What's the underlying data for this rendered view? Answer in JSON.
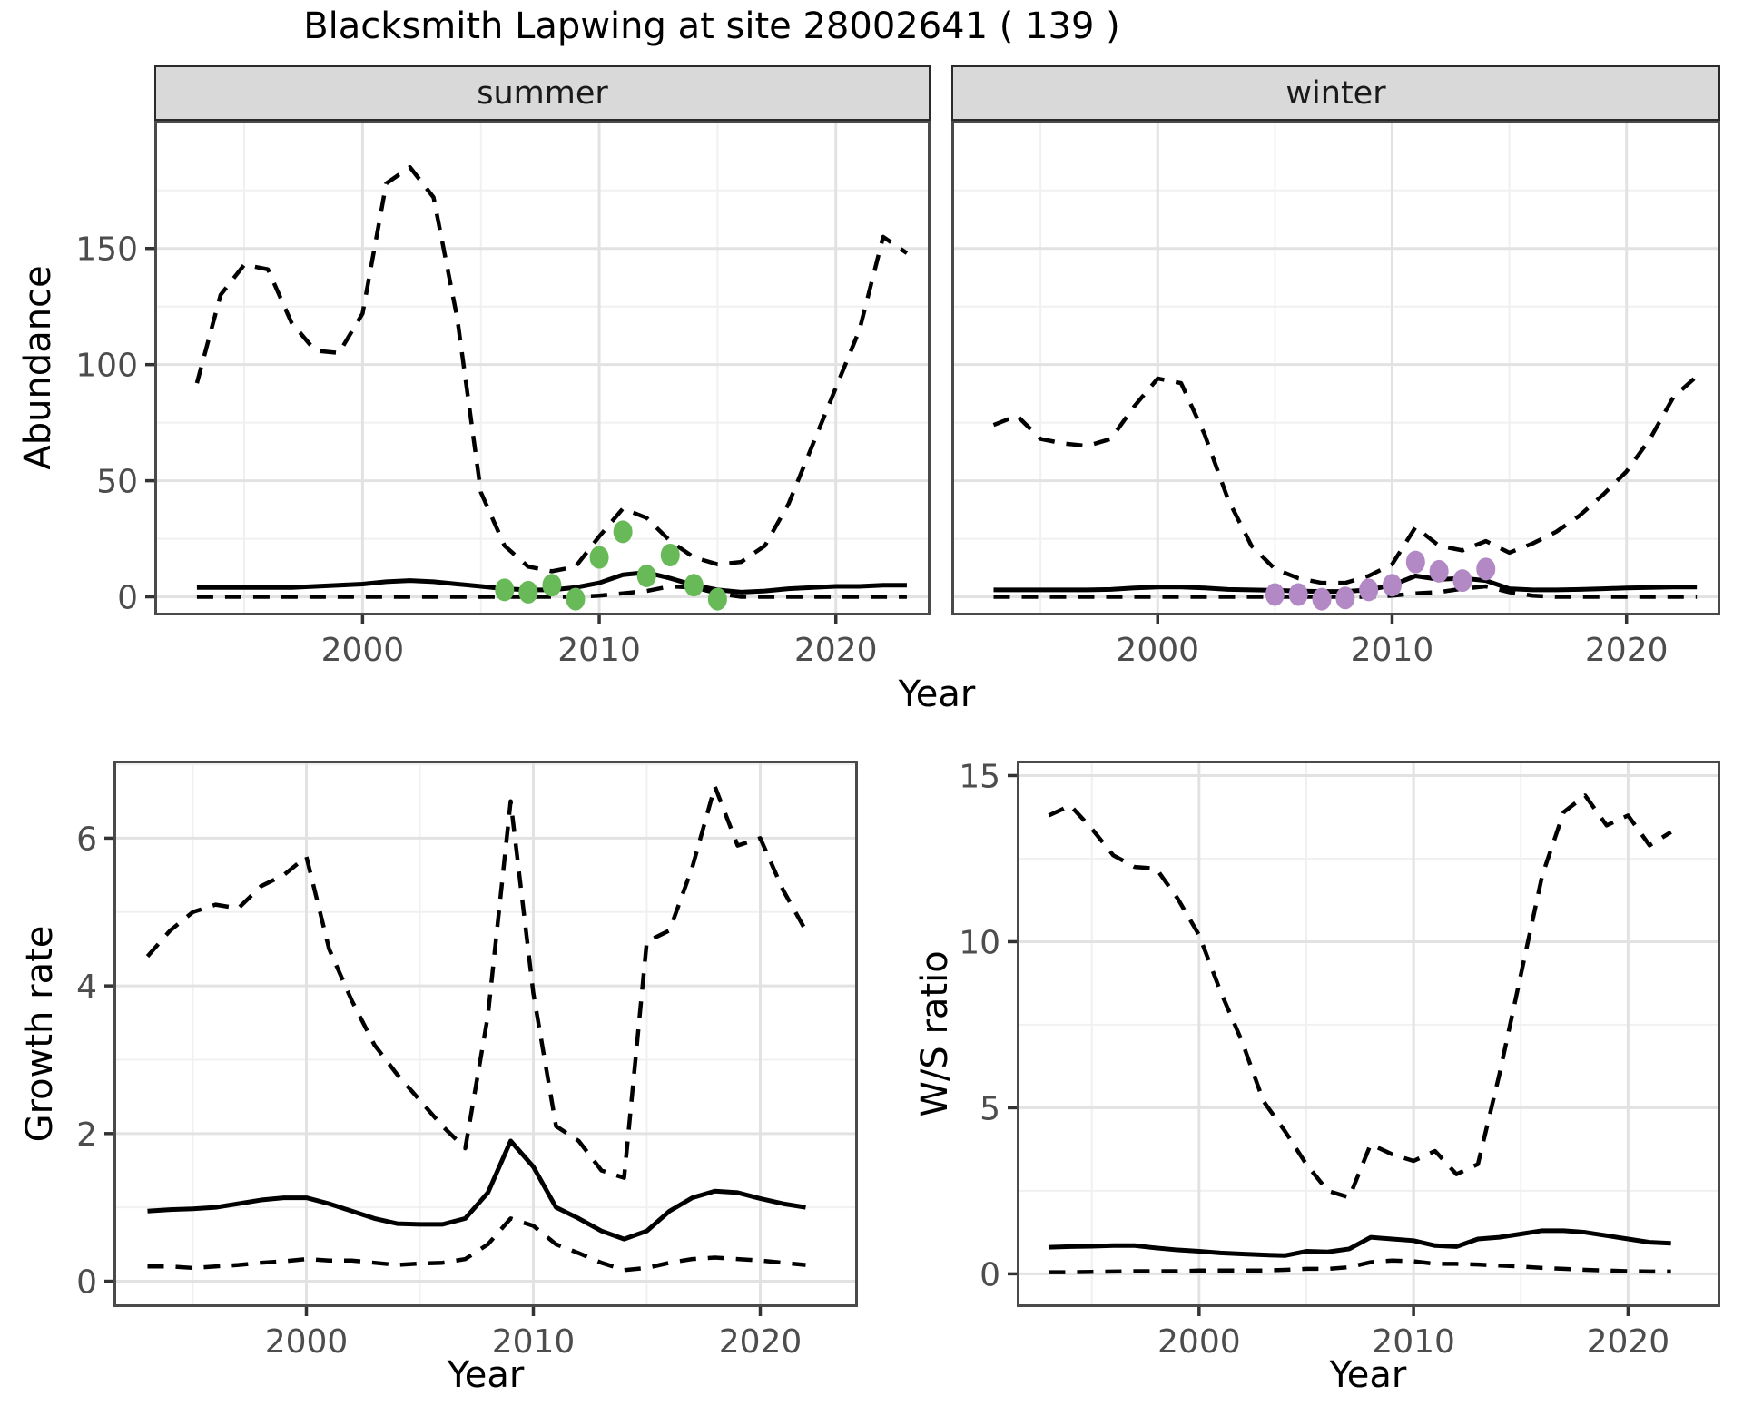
{
  "title": "Blacksmith Lapwing at site 28002641 ( 139 )",
  "colors": {
    "observed_summer": "#68b957",
    "observed_winter": "#b289c5",
    "line": "#000000",
    "strip_background": "#d9d9d9",
    "grid_major": "#e2e2e2",
    "grid_minor": "#f0f0f0",
    "axis_text": "#4d4d4d",
    "panel_border": "#4a4a4a"
  },
  "chart_data": [
    {
      "id": "abundance_summer",
      "type": "line",
      "facet_label": "summer",
      "xlabel": "Year",
      "ylabel": "Abundance",
      "xlim": [
        1991.2,
        2024.0
      ],
      "ylim": [
        -8,
        205
      ],
      "xticks": [
        2000,
        2010,
        2020
      ],
      "xtick_labels": [
        "2000",
        "2010",
        "2020"
      ],
      "xminor": [
        1995,
        2005,
        2015
      ],
      "yticks": [
        0,
        50,
        100,
        150
      ],
      "ytick_labels": [
        "0",
        "50",
        "100",
        "150"
      ],
      "yminor": [
        25,
        75,
        125,
        175
      ],
      "show_ytick_labels": true,
      "grid": true,
      "legend_position": "none",
      "x": [
        1993,
        1994,
        1995,
        1996,
        1997,
        1998,
        1999,
        2000,
        2001,
        2002,
        2003,
        2004,
        2005,
        2006,
        2007,
        2008,
        2009,
        2010,
        2011,
        2012,
        2013,
        2014,
        2015,
        2016,
        2017,
        2018,
        2019,
        2020,
        2021,
        2022,
        2023
      ],
      "series": [
        {
          "name": "upper-ci",
          "style": "dashed",
          "color": "#000000",
          "values": [
            92,
            130,
            143,
            141,
            118,
            106,
            105,
            122,
            178,
            185,
            172,
            120,
            45,
            22,
            13,
            11,
            13,
            26,
            38,
            34,
            24,
            17,
            14,
            15,
            22,
            40,
            65,
            90,
            115,
            155,
            148
          ]
        },
        {
          "name": "median",
          "style": "solid",
          "color": "#000000",
          "values": [
            4,
            4,
            4,
            4,
            4,
            4.5,
            5,
            5.5,
            6.5,
            7,
            6.5,
            5.5,
            4.5,
            3.5,
            3,
            3,
            4,
            6,
            9.5,
            10.5,
            8,
            5,
            3,
            2,
            2.5,
            3.5,
            4,
            4.5,
            4.5,
            5,
            5
          ]
        },
        {
          "name": "lower-ci",
          "style": "dashed",
          "color": "#000000",
          "values": [
            0,
            0,
            0,
            0,
            0,
            0,
            0,
            0,
            0,
            0,
            0,
            0,
            0,
            0,
            0,
            0,
            0,
            0.5,
            1.5,
            2.5,
            4.5,
            4,
            1.5,
            0,
            0,
            0,
            0,
            0,
            0,
            0,
            0
          ]
        }
      ],
      "points": {
        "name": "observed-counts",
        "color": "#68b957",
        "x": [
          2006,
          2007,
          2008,
          2009,
          2010,
          2011,
          2012,
          2013,
          2014,
          2015
        ],
        "y": [
          3,
          2,
          5,
          -1,
          17,
          28,
          9,
          18,
          5,
          -1
        ]
      }
    },
    {
      "id": "abundance_winter",
      "type": "line",
      "facet_label": "winter",
      "xlabel": "Year",
      "ylabel": "Abundance",
      "xlim": [
        1991.2,
        2024.0
      ],
      "ylim": [
        -8,
        205
      ],
      "xticks": [
        2000,
        2010,
        2020
      ],
      "xtick_labels": [
        "2000",
        "2010",
        "2020"
      ],
      "xminor": [
        1995,
        2005,
        2015
      ],
      "yticks": [
        0,
        50,
        100,
        150
      ],
      "ytick_labels": [
        "0",
        "50",
        "100",
        "150"
      ],
      "yminor": [
        25,
        75,
        125,
        175
      ],
      "show_ytick_labels": false,
      "grid": true,
      "legend_position": "none",
      "x": [
        1993,
        1994,
        1995,
        1996,
        1997,
        1998,
        1999,
        2000,
        2001,
        2002,
        2003,
        2004,
        2005,
        2006,
        2007,
        2008,
        2009,
        2010,
        2011,
        2012,
        2013,
        2014,
        2015,
        2016,
        2017,
        2018,
        2019,
        2020,
        2021,
        2022,
        2023
      ],
      "series": [
        {
          "name": "upper-ci",
          "style": "dashed",
          "color": "#000000",
          "values": [
            74,
            78,
            68,
            66,
            65,
            68,
            82,
            94,
            92,
            70,
            42,
            22,
            12,
            8,
            6,
            6,
            9,
            14,
            30,
            22,
            20,
            24,
            19,
            23,
            28,
            35,
            44,
            54,
            68,
            86,
            95
          ]
        },
        {
          "name": "median",
          "style": "solid",
          "color": "#000000",
          "values": [
            3,
            3,
            3,
            3,
            3,
            3.2,
            3.8,
            4.2,
            4.2,
            3.8,
            3.2,
            3,
            2.8,
            2.5,
            2.3,
            2.3,
            3,
            5,
            9,
            7.5,
            8,
            7,
            3.5,
            3,
            3,
            3.2,
            3.5,
            3.8,
            4,
            4.2,
            4.2
          ]
        },
        {
          "name": "lower-ci",
          "style": "dashed",
          "color": "#000000",
          "values": [
            0,
            0,
            0,
            0,
            0,
            0,
            0,
            0,
            0,
            0,
            0,
            0,
            0,
            0,
            0,
            0,
            0,
            0.5,
            1.5,
            2,
            3.5,
            4.5,
            2,
            0.5,
            0,
            0,
            0,
            0,
            0,
            0,
            0
          ]
        }
      ],
      "points": {
        "name": "observed-counts",
        "color": "#b289c5",
        "x": [
          2005,
          2006,
          2007,
          2008,
          2009,
          2010,
          2011,
          2012,
          2013,
          2014
        ],
        "y": [
          1,
          1,
          -1,
          -0.5,
          3,
          5,
          15,
          11,
          7,
          12
        ]
      }
    },
    {
      "id": "growth_rate",
      "type": "line",
      "facet_label": null,
      "xlabel": "Year",
      "ylabel": "Growth rate",
      "xlim": [
        1991.5,
        2024.3
      ],
      "ylim": [
        -0.35,
        7.05
      ],
      "xticks": [
        2000,
        2010,
        2020
      ],
      "xtick_labels": [
        "2000",
        "2010",
        "2020"
      ],
      "xminor": [
        1995,
        2005,
        2015
      ],
      "yticks": [
        0,
        2,
        4,
        6
      ],
      "ytick_labels": [
        "0",
        "2",
        "4",
        "6"
      ],
      "yminor": [
        1,
        3,
        5,
        7
      ],
      "show_ytick_labels": true,
      "grid": true,
      "legend_position": "none",
      "x": [
        1993,
        1994,
        1995,
        1996,
        1997,
        1998,
        1999,
        2000,
        2001,
        2002,
        2003,
        2004,
        2005,
        2006,
        2007,
        2008,
        2009,
        2010,
        2011,
        2012,
        2013,
        2014,
        2015,
        2016,
        2017,
        2018,
        2019,
        2020,
        2021,
        2022
      ],
      "series": [
        {
          "name": "upper-ci",
          "style": "dashed",
          "color": "#000000",
          "values": [
            4.4,
            4.75,
            5.0,
            5.1,
            5.05,
            5.35,
            5.5,
            5.75,
            4.5,
            3.8,
            3.2,
            2.8,
            2.45,
            2.1,
            1.8,
            3.6,
            6.5,
            3.9,
            2.1,
            1.9,
            1.5,
            1.4,
            4.6,
            4.75,
            5.6,
            6.7,
            5.9,
            6.0,
            5.3,
            4.75
          ]
        },
        {
          "name": "median",
          "style": "solid",
          "color": "#000000",
          "values": [
            0.95,
            0.97,
            0.98,
            1.0,
            1.05,
            1.1,
            1.13,
            1.13,
            1.05,
            0.95,
            0.85,
            0.78,
            0.77,
            0.77,
            0.85,
            1.2,
            1.9,
            1.55,
            1.0,
            0.85,
            0.68,
            0.57,
            0.68,
            0.95,
            1.13,
            1.22,
            1.2,
            1.12,
            1.05,
            1.0
          ]
        },
        {
          "name": "lower-ci",
          "style": "dashed",
          "color": "#000000",
          "values": [
            0.2,
            0.2,
            0.18,
            0.2,
            0.22,
            0.25,
            0.27,
            0.3,
            0.28,
            0.28,
            0.25,
            0.22,
            0.24,
            0.25,
            0.3,
            0.5,
            0.85,
            0.75,
            0.5,
            0.38,
            0.25,
            0.15,
            0.18,
            0.25,
            0.3,
            0.32,
            0.3,
            0.28,
            0.25,
            0.22
          ]
        }
      ],
      "points": null
    },
    {
      "id": "ws_ratio",
      "type": "line",
      "facet_label": null,
      "xlabel": "Year",
      "ylabel": "W/S ratio",
      "xlim": [
        1991.5,
        2024.3
      ],
      "ylim": [
        -1.0,
        15.45
      ],
      "xticks": [
        2000,
        2010,
        2020
      ],
      "xtick_labels": [
        "2000",
        "2010",
        "2020"
      ],
      "xminor": [
        1995,
        2005,
        2015
      ],
      "yticks": [
        0,
        5,
        10,
        15
      ],
      "ytick_labels": [
        "0",
        "5",
        "10",
        "15"
      ],
      "yminor": [
        2.5,
        7.5,
        12.5
      ],
      "show_ytick_labels": true,
      "grid": true,
      "legend_position": "none",
      "x": [
        1993,
        1994,
        1995,
        1996,
        1997,
        1998,
        1999,
        2000,
        2001,
        2002,
        2003,
        2004,
        2005,
        2006,
        2007,
        2008,
        2009,
        2010,
        2011,
        2012,
        2013,
        2014,
        2015,
        2016,
        2017,
        2018,
        2019,
        2020,
        2021,
        2022
      ],
      "series": [
        {
          "name": "upper-ci",
          "style": "dashed",
          "color": "#000000",
          "values": [
            13.8,
            14.1,
            13.4,
            12.6,
            12.25,
            12.2,
            11.3,
            10.2,
            8.5,
            7.0,
            5.2,
            4.3,
            3.3,
            2.5,
            2.3,
            3.9,
            3.6,
            3.4,
            3.7,
            3.0,
            3.3,
            6.0,
            9.0,
            12.0,
            13.9,
            14.4,
            13.5,
            13.8,
            12.9,
            13.3
          ]
        },
        {
          "name": "median",
          "style": "solid",
          "color": "#000000",
          "values": [
            0.8,
            0.82,
            0.83,
            0.85,
            0.85,
            0.78,
            0.72,
            0.68,
            0.63,
            0.6,
            0.57,
            0.55,
            0.68,
            0.66,
            0.75,
            1.1,
            1.05,
            1.0,
            0.85,
            0.82,
            1.05,
            1.1,
            1.2,
            1.3,
            1.3,
            1.25,
            1.15,
            1.05,
            0.95,
            0.92
          ]
        },
        {
          "name": "lower-ci",
          "style": "dashed",
          "color": "#000000",
          "values": [
            0.05,
            0.05,
            0.06,
            0.07,
            0.08,
            0.08,
            0.08,
            0.1,
            0.1,
            0.1,
            0.1,
            0.12,
            0.15,
            0.15,
            0.2,
            0.35,
            0.4,
            0.38,
            0.3,
            0.3,
            0.28,
            0.25,
            0.22,
            0.18,
            0.15,
            0.12,
            0.1,
            0.08,
            0.07,
            0.07
          ]
        }
      ],
      "points": null
    }
  ]
}
